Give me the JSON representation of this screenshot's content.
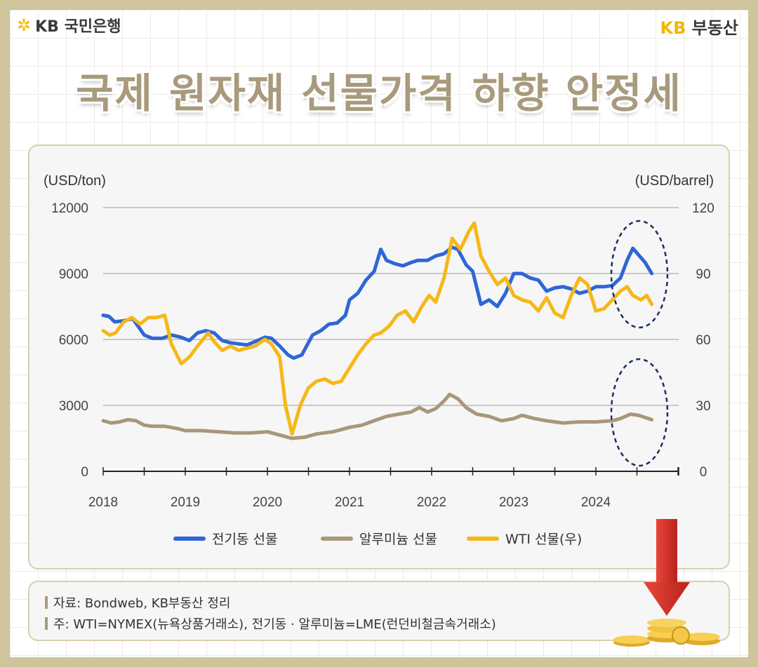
{
  "header": {
    "brand_left": "KB 국민은행",
    "brand_right_kb": "KB",
    "brand_right_text": "부동산",
    "title": "국제 원자재 선물가격 하향 안정세"
  },
  "colors": {
    "copper": "#2e66d6",
    "aluminum": "#a8977a",
    "wti": "#f5b818",
    "frame": "#cfc59c",
    "highlight": "#1a2f5c"
  },
  "chart_data": {
    "type": "line",
    "ylabel_left": "(USD/ton)",
    "ylabel_right": "(USD/barrel)",
    "ylim_left": [
      0,
      12000
    ],
    "ylim_right": [
      0,
      120
    ],
    "yticks_left": [
      "0",
      "3000",
      "6000",
      "9000",
      "12000"
    ],
    "yticks_right": [
      "0",
      "30",
      "60",
      "90",
      "120"
    ],
    "xlim": [
      2018.0,
      2024.75
    ],
    "xticks": [
      "2018",
      "2019",
      "2020",
      "2021",
      "2022",
      "2023",
      "2024"
    ],
    "grid": true,
    "legend_position": "bottom",
    "highlight_note": "dashed ellipses around latest 2024 values",
    "series": [
      {
        "name": "전기동 선물",
        "axis": "left",
        "color": "#2e66d6",
        "points": [
          [
            2018.0,
            7100
          ],
          [
            2018.07,
            7050
          ],
          [
            2018.14,
            6800
          ],
          [
            2018.25,
            6850
          ],
          [
            2018.36,
            6950
          ],
          [
            2018.5,
            6200
          ],
          [
            2018.6,
            6050
          ],
          [
            2018.72,
            6050
          ],
          [
            2018.83,
            6200
          ],
          [
            2018.95,
            6100
          ],
          [
            2019.05,
            5950
          ],
          [
            2019.15,
            6300
          ],
          [
            2019.25,
            6400
          ],
          [
            2019.35,
            6300
          ],
          [
            2019.45,
            5950
          ],
          [
            2019.55,
            5850
          ],
          [
            2019.65,
            5800
          ],
          [
            2019.75,
            5750
          ],
          [
            2019.85,
            5900
          ],
          [
            2019.97,
            6100
          ],
          [
            2020.05,
            6050
          ],
          [
            2020.15,
            5700
          ],
          [
            2020.25,
            5300
          ],
          [
            2020.32,
            5150
          ],
          [
            2020.42,
            5300
          ],
          [
            2020.55,
            6200
          ],
          [
            2020.65,
            6400
          ],
          [
            2020.75,
            6700
          ],
          [
            2020.85,
            6750
          ],
          [
            2020.95,
            7100
          ],
          [
            2021.0,
            7800
          ],
          [
            2021.1,
            8100
          ],
          [
            2021.2,
            8700
          ],
          [
            2021.3,
            9100
          ],
          [
            2021.38,
            10100
          ],
          [
            2021.45,
            9600
          ],
          [
            2021.55,
            9450
          ],
          [
            2021.65,
            9350
          ],
          [
            2021.75,
            9500
          ],
          [
            2021.83,
            9600
          ],
          [
            2021.95,
            9600
          ],
          [
            2022.05,
            9800
          ],
          [
            2022.15,
            9900
          ],
          [
            2022.25,
            10200
          ],
          [
            2022.32,
            10100
          ],
          [
            2022.42,
            9400
          ],
          [
            2022.5,
            9100
          ],
          [
            2022.6,
            7600
          ],
          [
            2022.7,
            7800
          ],
          [
            2022.8,
            7500
          ],
          [
            2022.9,
            8100
          ],
          [
            2023.0,
            9000
          ],
          [
            2023.1,
            9000
          ],
          [
            2023.2,
            8800
          ],
          [
            2023.3,
            8700
          ],
          [
            2023.4,
            8200
          ],
          [
            2023.5,
            8350
          ],
          [
            2023.6,
            8400
          ],
          [
            2023.7,
            8300
          ],
          [
            2023.8,
            8100
          ],
          [
            2023.9,
            8200
          ],
          [
            2024.0,
            8400
          ],
          [
            2024.1,
            8400
          ],
          [
            2024.2,
            8450
          ],
          [
            2024.3,
            8800
          ],
          [
            2024.38,
            9600
          ],
          [
            2024.45,
            10150
          ],
          [
            2024.52,
            9850
          ],
          [
            2024.6,
            9500
          ],
          [
            2024.68,
            9000
          ]
        ]
      },
      {
        "name": "알루미늄 선물",
        "axis": "left",
        "color": "#a8977a",
        "points": [
          [
            2018.0,
            2300
          ],
          [
            2018.1,
            2200
          ],
          [
            2018.2,
            2250
          ],
          [
            2018.3,
            2350
          ],
          [
            2018.4,
            2300
          ],
          [
            2018.5,
            2100
          ],
          [
            2018.6,
            2050
          ],
          [
            2018.75,
            2050
          ],
          [
            2018.9,
            1950
          ],
          [
            2019.0,
            1850
          ],
          [
            2019.2,
            1850
          ],
          [
            2019.4,
            1800
          ],
          [
            2019.6,
            1750
          ],
          [
            2019.8,
            1750
          ],
          [
            2020.0,
            1800
          ],
          [
            2020.15,
            1650
          ],
          [
            2020.3,
            1500
          ],
          [
            2020.45,
            1550
          ],
          [
            2020.6,
            1700
          ],
          [
            2020.8,
            1800
          ],
          [
            2021.0,
            2000
          ],
          [
            2021.15,
            2100
          ],
          [
            2021.3,
            2300
          ],
          [
            2021.45,
            2500
          ],
          [
            2021.6,
            2600
          ],
          [
            2021.75,
            2700
          ],
          [
            2021.85,
            2900
          ],
          [
            2021.95,
            2700
          ],
          [
            2022.05,
            2850
          ],
          [
            2022.15,
            3200
          ],
          [
            2022.22,
            3500
          ],
          [
            2022.32,
            3300
          ],
          [
            2022.42,
            2900
          ],
          [
            2022.55,
            2600
          ],
          [
            2022.7,
            2500
          ],
          [
            2022.85,
            2300
          ],
          [
            2023.0,
            2400
          ],
          [
            2023.1,
            2550
          ],
          [
            2023.25,
            2400
          ],
          [
            2023.4,
            2300
          ],
          [
            2023.6,
            2200
          ],
          [
            2023.8,
            2250
          ],
          [
            2024.0,
            2250
          ],
          [
            2024.2,
            2300
          ],
          [
            2024.3,
            2400
          ],
          [
            2024.42,
            2600
          ],
          [
            2024.52,
            2550
          ],
          [
            2024.6,
            2450
          ],
          [
            2024.68,
            2350
          ]
        ]
      },
      {
        "name": "WTI 선물(우)",
        "axis": "right",
        "color": "#f5b818",
        "points": [
          [
            2018.0,
            64
          ],
          [
            2018.08,
            62
          ],
          [
            2018.15,
            63
          ],
          [
            2018.25,
            68
          ],
          [
            2018.35,
            70
          ],
          [
            2018.45,
            67
          ],
          [
            2018.55,
            70
          ],
          [
            2018.65,
            70
          ],
          [
            2018.75,
            71
          ],
          [
            2018.83,
            58
          ],
          [
            2018.95,
            49
          ],
          [
            2019.05,
            52
          ],
          [
            2019.15,
            57
          ],
          [
            2019.28,
            63
          ],
          [
            2019.35,
            59
          ],
          [
            2019.45,
            55
          ],
          [
            2019.55,
            57
          ],
          [
            2019.65,
            55
          ],
          [
            2019.75,
            56
          ],
          [
            2019.85,
            57
          ],
          [
            2019.97,
            60
          ],
          [
            2020.05,
            58
          ],
          [
            2020.15,
            52
          ],
          [
            2020.22,
            30
          ],
          [
            2020.3,
            17
          ],
          [
            2020.4,
            30
          ],
          [
            2020.5,
            38
          ],
          [
            2020.6,
            41
          ],
          [
            2020.7,
            42
          ],
          [
            2020.8,
            40
          ],
          [
            2020.9,
            41
          ],
          [
            2021.0,
            47
          ],
          [
            2021.1,
            53
          ],
          [
            2021.2,
            58
          ],
          [
            2021.3,
            62
          ],
          [
            2021.38,
            63
          ],
          [
            2021.48,
            66
          ],
          [
            2021.58,
            71
          ],
          [
            2021.68,
            73
          ],
          [
            2021.78,
            68
          ],
          [
            2021.88,
            75
          ],
          [
            2021.97,
            80
          ],
          [
            2022.05,
            77
          ],
          [
            2022.15,
            88
          ],
          [
            2022.25,
            106
          ],
          [
            2022.35,
            101
          ],
          [
            2022.45,
            109
          ],
          [
            2022.52,
            113
          ],
          [
            2022.6,
            98
          ],
          [
            2022.7,
            91
          ],
          [
            2022.8,
            85
          ],
          [
            2022.9,
            88
          ],
          [
            2023.0,
            80
          ],
          [
            2023.1,
            78
          ],
          [
            2023.2,
            77
          ],
          [
            2023.3,
            73
          ],
          [
            2023.4,
            79
          ],
          [
            2023.5,
            72
          ],
          [
            2023.6,
            70
          ],
          [
            2023.7,
            80
          ],
          [
            2023.8,
            88
          ],
          [
            2023.9,
            85
          ],
          [
            2024.0,
            73
          ],
          [
            2024.1,
            74
          ],
          [
            2024.2,
            78
          ],
          [
            2024.3,
            82
          ],
          [
            2024.38,
            84
          ],
          [
            2024.45,
            80
          ],
          [
            2024.55,
            78
          ],
          [
            2024.62,
            80
          ],
          [
            2024.68,
            76
          ]
        ]
      }
    ]
  },
  "notes": {
    "source": "자료: Bondweb, KB부동산 정리",
    "footnote": "주: WTI=NYMEX(뉴욕상품거래소), 전기동 · 알루미늄=LME(런던비철금속거래소)"
  }
}
